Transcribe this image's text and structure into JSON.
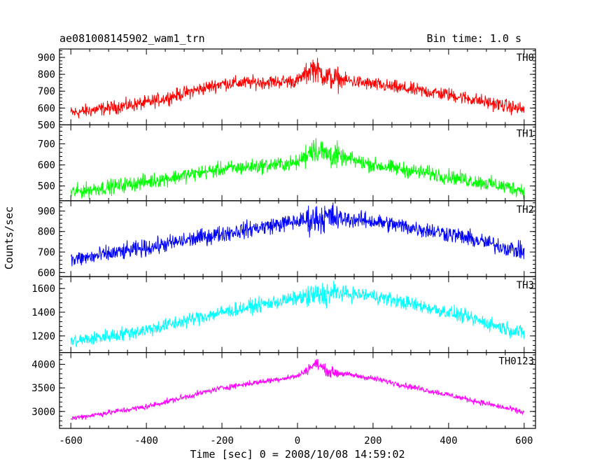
{
  "chart_data": {
    "type": "line",
    "title": "ae081008145902_wam1_trn",
    "subtitle": "Bin time: 1.0 s",
    "xlabel": "Time [sec] 0 = 2008/10/08 14:59:02",
    "ylabel": "Counts/sec",
    "xlim": [
      -630,
      630
    ],
    "x_ticks": [
      -600,
      -400,
      -200,
      0,
      200,
      400,
      600
    ],
    "shared_x": {
      "start": -600,
      "end": 600,
      "step": 1
    },
    "series": [
      {
        "name": "TH0",
        "color": "#ff0000",
        "ylim": [
          500,
          950
        ],
        "y_ticks": [
          500,
          600,
          700,
          800,
          900
        ],
        "trend_x": [
          -600,
          -400,
          -200,
          0,
          40,
          80,
          200,
          400,
          600
        ],
        "trend_y": [
          570,
          630,
          745,
          760,
          840,
          780,
          740,
          680,
          590
        ],
        "noise_amplitude": 40
      },
      {
        "name": "TH1",
        "color": "#00ff00",
        "ylim": [
          430,
          790
        ],
        "y_ticks": [
          500,
          600,
          700
        ],
        "trend_x": [
          -600,
          -400,
          -200,
          0,
          40,
          80,
          200,
          400,
          600
        ],
        "trend_y": [
          470,
          520,
          580,
          610,
          680,
          650,
          600,
          545,
          480
        ],
        "noise_amplitude": 35
      },
      {
        "name": "TH2",
        "color": "#0000ff",
        "ylim": [
          580,
          950
        ],
        "y_ticks": [
          600,
          700,
          800,
          900
        ],
        "trend_x": [
          -600,
          -400,
          -200,
          0,
          80,
          200,
          400,
          600
        ],
        "trend_y": [
          660,
          720,
          790,
          850,
          870,
          850,
          790,
          700
        ],
        "noise_amplitude": 40
      },
      {
        "name": "TH3",
        "color": "#00ffff",
        "ylim": [
          1060,
          1700
        ],
        "y_ticks": [
          1200,
          1400,
          1600
        ],
        "trend_x": [
          -600,
          -400,
          -200,
          0,
          100,
          200,
          400,
          600
        ],
        "trend_y": [
          1150,
          1250,
          1400,
          1520,
          1560,
          1540,
          1400,
          1220
        ],
        "noise_amplitude": 60
      },
      {
        "name": "TH0123",
        "color": "#ff00ff",
        "ylim": [
          2640,
          4250
        ],
        "y_ticks": [
          3000,
          3500,
          4000
        ],
        "trend_x": [
          -600,
          -400,
          -200,
          0,
          50,
          80,
          200,
          400,
          600
        ],
        "trend_y": [
          2850,
          3100,
          3500,
          3750,
          4020,
          3850,
          3700,
          3350,
          2980
        ],
        "noise_amplitude": 60
      }
    ]
  }
}
